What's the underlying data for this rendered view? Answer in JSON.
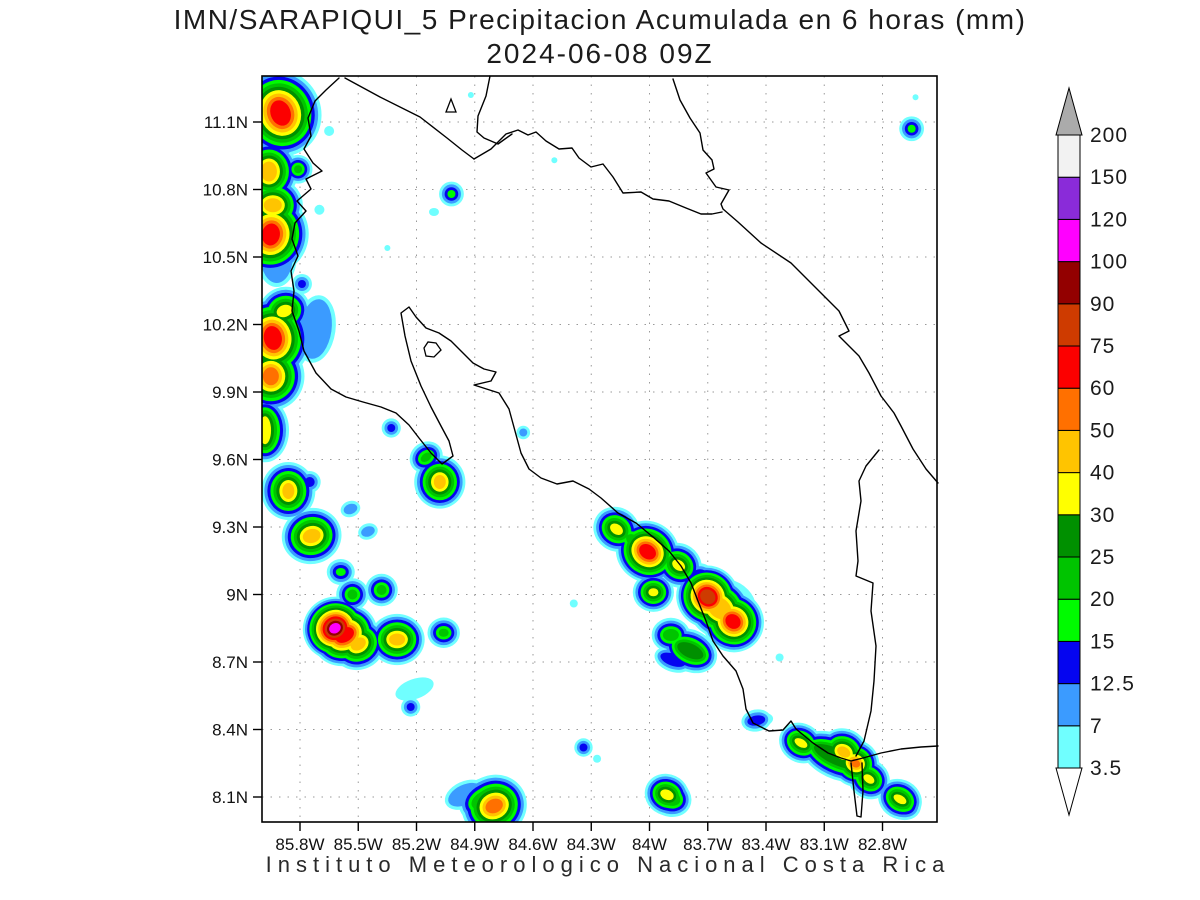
{
  "header": {
    "title": "IMN/SARAPIQUI_5 Precipitacion Acumulada en 6 horas (mm)",
    "datetime": "2024-06-08 09Z"
  },
  "footer": {
    "text": "Instituto  Meteorologico  Nacional  Costa  Rica"
  },
  "chart_data": {
    "type": "heatmap",
    "title": "IMN/SARAPIQUI_5 Precipitacion Acumulada en 6 horas (mm)",
    "subtitle": "2024-06-08 09Z",
    "units": "mm",
    "grid": "dotted",
    "legend_position": "right-colorbar",
    "lat_tick_labels": [
      "11.1N",
      "10.8N",
      "10.5N",
      "10.2N",
      "9.9N",
      "9.6N",
      "9.3N",
      "9N",
      "8.7N",
      "8.4N",
      "8.1N"
    ],
    "lon_tick_labels": [
      "85.8W",
      "85.5W",
      "85.2W",
      "84.9W",
      "84.6W",
      "84.3W",
      "84W",
      "83.7W",
      "83.4W",
      "83.1W",
      "82.8W"
    ],
    "lat_ticks": [
      11.1,
      10.8,
      10.5,
      10.2,
      9.9,
      9.6,
      9.3,
      9.0,
      8.7,
      8.4,
      8.1
    ],
    "lon_ticks": [
      85.8,
      85.5,
      85.2,
      84.9,
      84.6,
      84.3,
      84.0,
      83.7,
      83.4,
      83.1,
      82.8
    ],
    "lat_range": [
      7.99,
      11.31
    ],
    "lon_range_west": [
      86.0,
      82.52
    ],
    "levels_mm": [
      3.5,
      7,
      12.5,
      15,
      20,
      25,
      30,
      40,
      50,
      60,
      75,
      90,
      100,
      120,
      150,
      200
    ],
    "palette": [
      "#70FFFF",
      "#3B9BFF",
      "#0505F0",
      "#00FB00",
      "#00C400",
      "#009000",
      "#FFFF00",
      "#FFC400",
      "#FF7000",
      "#FC0000",
      "#CE3B00",
      "#930000",
      "#FF00FF",
      "#8A2BD9",
      "#F2F2F2",
      "#ABABAB"
    ],
    "colorbar": {
      "tick_labels": [
        "3.5",
        "7",
        "12.5",
        "15",
        "20",
        "25",
        "30",
        "40",
        "50",
        "60",
        "75",
        "90",
        "100",
        "120",
        "150",
        "200"
      ],
      "over_arrow_color": "#ABABAB",
      "under_arrow_color": "#FFFFFF"
    },
    "cells_format": [
      "lon_west_deg",
      "lat_north_deg",
      "peak_mm",
      "core_rx_px",
      "core_ry_px",
      "rotation_deg",
      "ring_px"
    ],
    "cells": [
      [
        85.9,
        11.14,
        68,
        10,
        13,
        -20,
        3.4
      ],
      [
        85.96,
        10.88,
        45,
        8,
        10,
        0,
        3.0
      ],
      [
        85.94,
        10.73,
        45,
        9,
        7,
        0,
        3.0
      ],
      [
        85.95,
        10.6,
        68,
        9,
        11,
        10,
        3.2
      ],
      [
        85.81,
        10.89,
        22,
        4,
        4,
        0,
        2.6
      ],
      [
        85.79,
        10.38,
        14,
        4,
        4,
        0,
        3.0
      ],
      [
        85.94,
        10.14,
        68,
        9,
        12,
        -10,
        3.2
      ],
      [
        85.95,
        9.97,
        55,
        8,
        9,
        0,
        3.2
      ],
      [
        85.88,
        10.26,
        35,
        8,
        6,
        -20,
        3.0
      ],
      [
        85.72,
        10.18,
        10,
        16,
        30,
        8,
        4.0
      ],
      [
        85.9,
        11.02,
        10,
        14,
        16,
        0,
        4.0
      ],
      [
        85.92,
        10.5,
        10,
        16,
        26,
        0,
        4.0
      ],
      [
        85.65,
        11.06,
        5,
        5,
        5,
        0,
        3.0
      ],
      [
        85.7,
        10.71,
        5,
        5,
        5,
        0,
        3.0
      ],
      [
        85.33,
        9.74,
        14,
        4,
        4,
        0,
        2.8
      ],
      [
        84.65,
        9.72,
        10,
        4,
        4,
        0,
        2.8
      ],
      [
        85.02,
        10.78,
        17,
        4,
        4,
        0,
        2.8
      ],
      [
        85.11,
        10.7,
        5,
        5,
        4,
        0,
        3.0
      ],
      [
        85.35,
        10.54,
        5,
        3,
        3,
        0,
        2.0
      ],
      [
        85.98,
        9.73,
        35,
        6,
        14,
        0,
        3.0
      ],
      [
        85.86,
        9.46,
        45,
        6,
        8,
        0,
        3.0
      ],
      [
        85.75,
        9.5,
        14,
        5,
        5,
        0,
        3.0
      ],
      [
        85.74,
        9.26,
        45,
        9,
        7,
        -15,
        3.0
      ],
      [
        85.59,
        9.1,
        17,
        5,
        4,
        0,
        3.0
      ],
      [
        85.53,
        9.0,
        22,
        5,
        5,
        0,
        2.8
      ],
      [
        85.38,
        9.02,
        22,
        5,
        5,
        0,
        2.8
      ],
      [
        85.62,
        8.85,
        110,
        6,
        5,
        -30,
        2.2
      ],
      [
        85.57,
        8.82,
        68,
        10,
        7,
        -30,
        2.6
      ],
      [
        85.5,
        8.78,
        45,
        8,
        6,
        -30,
        2.8
      ],
      [
        85.3,
        8.8,
        45,
        8,
        6,
        0,
        2.8
      ],
      [
        85.06,
        8.83,
        22,
        5,
        4,
        0,
        2.8
      ],
      [
        85.21,
        8.58,
        5,
        20,
        10,
        -20,
        3.0
      ],
      [
        85.23,
        8.5,
        14,
        4,
        4,
        0,
        2.8
      ],
      [
        85.54,
        9.38,
        10,
        7,
        5,
        -20,
        3.0
      ],
      [
        85.45,
        9.28,
        10,
        7,
        5,
        -20,
        3.0
      ],
      [
        84.39,
        8.96,
        5,
        4,
        4,
        0,
        2.0
      ],
      [
        84.34,
        8.32,
        14,
        4,
        4,
        0,
        2.6
      ],
      [
        84.27,
        8.27,
        5,
        4,
        4,
        0,
        2.0
      ],
      [
        84.8,
        8.06,
        55,
        9,
        7,
        -25,
        3.0
      ],
      [
        84.84,
        8.09,
        22,
        16,
        9,
        -25,
        3.2
      ],
      [
        84.95,
        8.11,
        10,
        18,
        10,
        -25,
        3.4
      ],
      [
        85.15,
        9.61,
        22,
        6,
        4,
        -35,
        2.8
      ],
      [
        85.08,
        9.5,
        45,
        6,
        7,
        0,
        2.8
      ],
      [
        85.05,
        9.46,
        10,
        10,
        12,
        0,
        3.0
      ],
      [
        82.65,
        11.07,
        17,
        4,
        4,
        0,
        2.8
      ],
      [
        82.63,
        11.21,
        5,
        3,
        3,
        0,
        2.0
      ],
      [
        84.17,
        9.29,
        35,
        7,
        5,
        35,
        2.8
      ],
      [
        84.01,
        9.19,
        68,
        9,
        7,
        35,
        2.6
      ],
      [
        83.85,
        9.13,
        35,
        7,
        5,
        35,
        2.8
      ],
      [
        83.98,
        9.01,
        35,
        5,
        4,
        0,
        2.6
      ],
      [
        84.11,
        9.27,
        14,
        14,
        5,
        35,
        3.0
      ],
      [
        84.05,
        9.22,
        22,
        16,
        7,
        35,
        3.0
      ],
      [
        83.7,
        8.99,
        80,
        8,
        7,
        40,
        2.4
      ],
      [
        83.57,
        8.88,
        68,
        8,
        7,
        40,
        2.6
      ],
      [
        83.64,
        8.94,
        45,
        13,
        10,
        40,
        2.8
      ],
      [
        83.64,
        8.94,
        28,
        18,
        14,
        40,
        3.0
      ],
      [
        83.58,
        8.98,
        5,
        26,
        18,
        30,
        3.0
      ],
      [
        83.74,
        9.09,
        14,
        7,
        5,
        0,
        3.0
      ],
      [
        83.79,
        8.75,
        28,
        14,
        7,
        25,
        2.8
      ],
      [
        83.89,
        8.82,
        22,
        8,
        6,
        0,
        2.8
      ],
      [
        83.88,
        8.71,
        14,
        13,
        6,
        20,
        3.0
      ],
      [
        83.84,
        8.71,
        5,
        22,
        10,
        20,
        3.0
      ],
      [
        83.45,
        8.44,
        14,
        9,
        5,
        -10,
        3.0
      ],
      [
        83.44,
        8.44,
        5,
        15,
        8,
        -10,
        3.0
      ],
      [
        83.22,
        8.34,
        35,
        7,
        4,
        30,
        2.6
      ],
      [
        83.0,
        8.3,
        45,
        7,
        5,
        30,
        2.6
      ],
      [
        82.94,
        8.25,
        55,
        5,
        4,
        30,
        2.4
      ],
      [
        82.87,
        8.18,
        35,
        6,
        4,
        35,
        2.6
      ],
      [
        83.04,
        8.28,
        28,
        24,
        8,
        25,
        2.8
      ],
      [
        83.12,
        8.31,
        14,
        22,
        7,
        25,
        3.0
      ],
      [
        83.06,
        8.29,
        5,
        34,
        12,
        25,
        3.0
      ],
      [
        83.25,
        8.37,
        14,
        5,
        4,
        0,
        2.6
      ],
      [
        82.71,
        8.09,
        35,
        7,
        4,
        30,
        2.6
      ],
      [
        82.71,
        8.08,
        22,
        11,
        6,
        30,
        2.8
      ],
      [
        82.71,
        8.08,
        5,
        16,
        9,
        30,
        3.0
      ],
      [
        83.91,
        8.11,
        35,
        7,
        5,
        25,
        2.6
      ],
      [
        83.9,
        8.1,
        22,
        12,
        8,
        25,
        2.8
      ],
      [
        83.9,
        8.1,
        14,
        15,
        10,
        25,
        3.0
      ],
      [
        83.91,
        8.1,
        5,
        20,
        13,
        25,
        3.0
      ],
      [
        83.33,
        8.72,
        5,
        4,
        4,
        0,
        2.0
      ],
      [
        84.92,
        11.22,
        5,
        3,
        3,
        0,
        2.0
      ],
      [
        84.49,
        10.93,
        5,
        3,
        3,
        0,
        2.0
      ]
    ]
  }
}
